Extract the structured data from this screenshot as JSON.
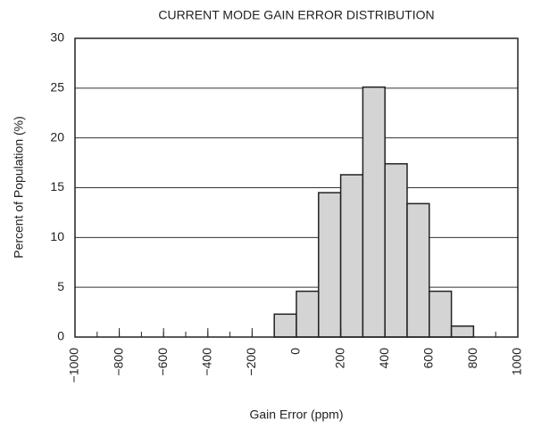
{
  "chart_data": {
    "type": "histogram",
    "title": "CURRENT MODE GAIN ERROR DISTRIBUTION",
    "x_label": "Gain Error (ppm)",
    "y_label": "Percent of Population (%)",
    "bins": [
      -1000,
      -900,
      -800,
      -700,
      -600,
      -500,
      -400,
      -300,
      -200,
      -100,
      0,
      100,
      200,
      300,
      400,
      500,
      600,
      700,
      800,
      900,
      1000
    ],
    "values": [
      0,
      0,
      0,
      0,
      0,
      0,
      0,
      0,
      0,
      2.3,
      4.6,
      14.5,
      16.3,
      25.1,
      17.4,
      13.4,
      4.6,
      1.1,
      0,
      0
    ],
    "color": "#d4d4d4",
    "xlim": [
      -1000,
      1000
    ],
    "xticks": [
      {
        "value": -1000,
        "label": "−1000"
      },
      {
        "value": -800,
        "label": "−800"
      },
      {
        "value": -600,
        "label": "−600"
      },
      {
        "value": -400,
        "label": "−400"
      },
      {
        "value": -200,
        "label": "−200"
      },
      0,
      200,
      400,
      600,
      800,
      1000
    ],
    "ylim": [
      0,
      30
    ],
    "yticks": [
      0,
      5,
      10,
      15,
      20,
      25,
      30
    ],
    "grid": true
  }
}
